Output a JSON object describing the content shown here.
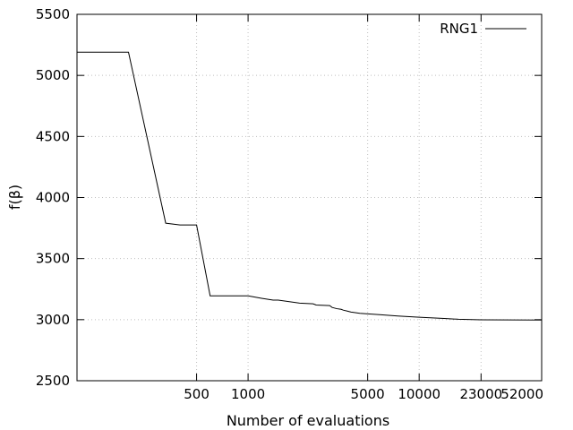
{
  "chart_data": {
    "type": "line",
    "xscale": "log",
    "xlabel": "Number of evaluations",
    "ylabel": "f(β)",
    "xlim": [
      100,
      52000
    ],
    "ylim": [
      2500,
      5500
    ],
    "grid": true,
    "legend_position": "top-right",
    "x_ticks": [
      500,
      1000,
      5000,
      10000,
      23000,
      52000
    ],
    "x_tick_labels": [
      "500",
      "1000",
      "5000",
      "10000",
      "23000",
      "52000"
    ],
    "y_ticks": [
      2500,
      3000,
      3500,
      4000,
      4500,
      5000,
      5500
    ],
    "y_tick_labels": [
      "2500",
      "3000",
      "3500",
      "4000",
      "4500",
      "5000",
      "5500"
    ],
    "series": [
      {
        "name": "RNG1",
        "color": "#000000",
        "x": [
          100,
          200,
          330,
          400,
          500,
          600,
          1000,
          1200,
          1400,
          1500,
          1900,
          2000,
          2400,
          2500,
          3000,
          3100,
          3300,
          3500,
          3600,
          3800,
          4000,
          4100,
          4500,
          6000,
          7500,
          10000,
          14000,
          17000,
          23000,
          52000
        ],
        "y": [
          5190,
          5190,
          3790,
          3775,
          3775,
          3195,
          3195,
          3175,
          3160,
          3160,
          3140,
          3135,
          3130,
          3120,
          3115,
          3100,
          3090,
          3085,
          3078,
          3070,
          3062,
          3060,
          3052,
          3040,
          3030,
          3020,
          3010,
          3003,
          2999,
          2997
        ]
      }
    ]
  }
}
